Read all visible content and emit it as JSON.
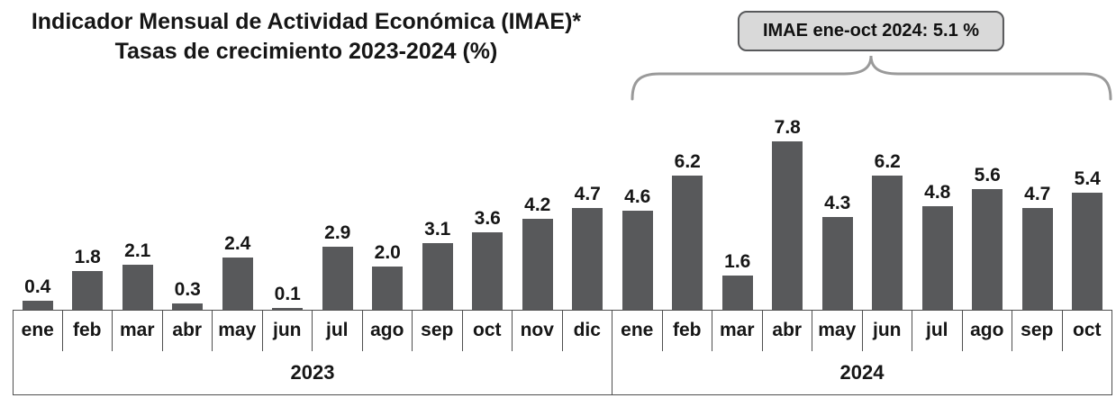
{
  "title": {
    "line1": "Indicador Mensual de Actividad Económica (IMAE)*",
    "line2": "Tasas de crecimiento 2023-2024 (%)"
  },
  "callout": {
    "text": "IMAE ene-oct 2024: 5.1 %"
  },
  "colors": {
    "bar": "#58595B",
    "callout_bg": "#d9d9d9",
    "axis_line": "#4f4f4f",
    "brace": "#9a9a9a"
  },
  "chart_data": {
    "type": "bar",
    "title": "Indicador Mensual de Actividad Económica (IMAE)* Tasas de crecimiento 2023-2024 (%)",
    "value_unit": "%",
    "ylim": [
      0,
      8.2
    ],
    "grid": false,
    "legend": "none",
    "groups": [
      {
        "year": "2023",
        "categories": [
          "ene",
          "feb",
          "mar",
          "abr",
          "may",
          "jun",
          "jul",
          "ago",
          "sep",
          "oct",
          "nov",
          "dic"
        ],
        "values": [
          0.4,
          1.8,
          2.1,
          0.3,
          2.4,
          0.1,
          2.9,
          2.0,
          3.1,
          3.6,
          4.2,
          4.7
        ]
      },
      {
        "year": "2024",
        "categories": [
          "ene",
          "feb",
          "mar",
          "abr",
          "may",
          "jun",
          "jul",
          "ago",
          "sep",
          "oct"
        ],
        "values": [
          4.6,
          6.2,
          1.6,
          7.8,
          4.3,
          6.2,
          4.8,
          5.6,
          4.7,
          5.4
        ]
      }
    ],
    "annotation": {
      "text": "IMAE ene-oct 2024: 5.1 %",
      "applies_to": "2024 ene-oct"
    }
  }
}
